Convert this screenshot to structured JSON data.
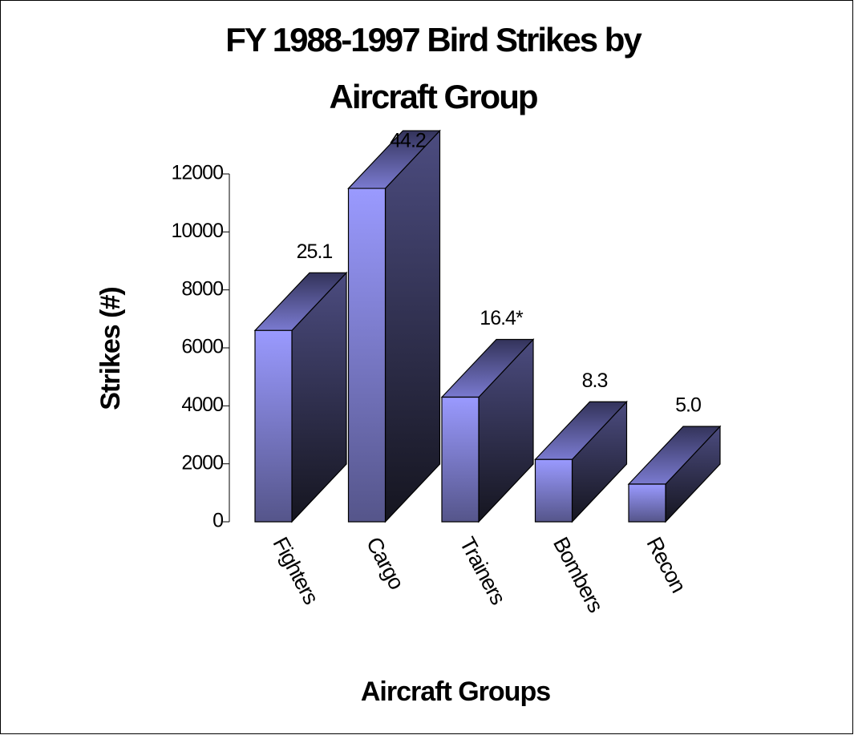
{
  "chart_data": {
    "type": "bar3d",
    "title": [
      "FY 1988-1997 Bird Strikes by",
      "Aircraft Group"
    ],
    "categories": [
      "Fighters",
      "Cargo",
      "Trainers",
      "Bombers",
      "Recon"
    ],
    "values": [
      6600,
      11500,
      4300,
      2150,
      1300
    ],
    "annotations": [
      "25.1",
      "44.2",
      "16.4*",
      "8.3",
      "5.0"
    ],
    "ylabel": "Strikes (#)",
    "xlabel": "Aircraft Groups",
    "ylim": [
      0,
      12000
    ],
    "yticks": [
      0,
      2000,
      4000,
      6000,
      8000,
      10000,
      12000
    ],
    "color": "#9999ff"
  }
}
